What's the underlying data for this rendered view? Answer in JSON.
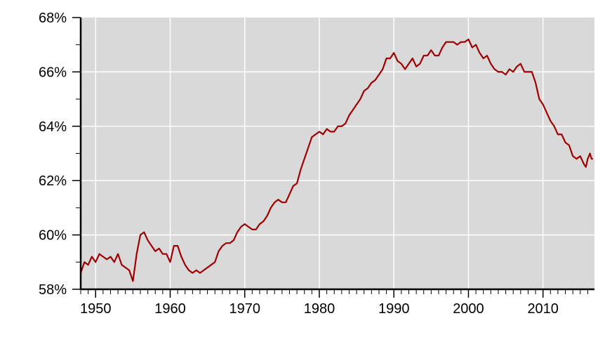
{
  "chart_data": {
    "type": "line",
    "title": "",
    "xlabel": "",
    "ylabel": "",
    "xlim": [
      1948,
      2016.9
    ],
    "ylim": [
      58,
      68
    ],
    "grid": true,
    "background_color": "#d9d9d9",
    "grid_color": "#ffffff",
    "line_color": "#a00000",
    "x_ticks": [
      1950,
      1960,
      1970,
      1980,
      1990,
      2000,
      2010
    ],
    "x_tick_labels": [
      "1950",
      "1960",
      "1970",
      "1980",
      "1990",
      "2000",
      "2010"
    ],
    "y_ticks": [
      58,
      60,
      62,
      64,
      66,
      68
    ],
    "y_tick_labels": [
      "58%",
      "60%",
      "62%",
      "64%",
      "66%",
      "68%"
    ],
    "series": [
      {
        "x": [
          1948,
          1948.5,
          1949,
          1949.5,
          1950,
          1950.5,
          1951,
          1951.5,
          1952,
          1952.5,
          1953,
          1953.5,
          1954,
          1954.5,
          1955,
          1955.5,
          1956,
          1956.5,
          1957,
          1957.5,
          1958,
          1958.5,
          1959,
          1959.5,
          1960,
          1960.5,
          1961,
          1961.5,
          1962,
          1962.5,
          1963,
          1963.5,
          1964,
          1964.5,
          1965,
          1965.5,
          1966,
          1966.5,
          1967,
          1967.5,
          1968,
          1968.5,
          1969,
          1969.5,
          1970,
          1970.5,
          1971,
          1971.5,
          1972,
          1972.5,
          1973,
          1973.5,
          1974,
          1974.5,
          1975,
          1975.5,
          1976,
          1976.5,
          1977,
          1977.5,
          1978,
          1978.5,
          1979,
          1979.5,
          1980,
          1980.5,
          1981,
          1981.5,
          1982,
          1982.5,
          1983,
          1983.5,
          1984,
          1984.5,
          1985,
          1985.5,
          1986,
          1986.5,
          1987,
          1987.5,
          1988,
          1988.5,
          1989,
          1989.5,
          1990,
          1990.5,
          1991,
          1991.5,
          1992,
          1992.5,
          1993,
          1993.5,
          1994,
          1994.5,
          1995,
          1995.5,
          1996,
          1996.5,
          1997,
          1997.5,
          1998,
          1998.5,
          1999,
          1999.5,
          2000,
          2000.5,
          2001,
          2001.5,
          2002,
          2002.5,
          2003,
          2003.5,
          2004,
          2004.5,
          2005,
          2005.5,
          2006,
          2006.5,
          2007,
          2007.5,
          2008,
          2008.5,
          2009,
          2009.5,
          2010,
          2010.5,
          2011,
          2011.5,
          2012,
          2012.5,
          2013,
          2013.5,
          2014,
          2014.5,
          2015,
          2015.5,
          2015.75,
          2016,
          2016.3,
          2016.5,
          2016.7
        ],
        "y": [
          58.6,
          59.0,
          58.9,
          59.2,
          59.0,
          59.3,
          59.2,
          59.1,
          59.2,
          59.0,
          59.3,
          58.9,
          58.8,
          58.7,
          58.3,
          59.3,
          60.0,
          60.1,
          59.8,
          59.6,
          59.4,
          59.5,
          59.3,
          59.3,
          59.0,
          59.6,
          59.6,
          59.2,
          58.9,
          58.7,
          58.6,
          58.7,
          58.6,
          58.7,
          58.8,
          58.9,
          59.0,
          59.4,
          59.6,
          59.7,
          59.7,
          59.8,
          60.1,
          60.3,
          60.4,
          60.3,
          60.2,
          60.2,
          60.4,
          60.5,
          60.7,
          61.0,
          61.2,
          61.3,
          61.2,
          61.2,
          61.5,
          61.8,
          61.9,
          62.4,
          62.8,
          63.2,
          63.6,
          63.7,
          63.8,
          63.7,
          63.9,
          63.8,
          63.8,
          64.0,
          64.0,
          64.1,
          64.4,
          64.6,
          64.8,
          65.0,
          65.3,
          65.4,
          65.6,
          65.7,
          65.9,
          66.1,
          66.5,
          66.5,
          66.7,
          66.4,
          66.3,
          66.1,
          66.3,
          66.5,
          66.2,
          66.3,
          66.6,
          66.6,
          66.8,
          66.6,
          66.6,
          66.9,
          67.1,
          67.1,
          67.1,
          67.0,
          67.1,
          67.1,
          67.2,
          66.9,
          67.0,
          66.7,
          66.5,
          66.6,
          66.3,
          66.1,
          66.0,
          66.0,
          65.9,
          66.1,
          66.0,
          66.2,
          66.3,
          66.0,
          66.0,
          66.0,
          65.6,
          65.0,
          64.8,
          64.5,
          64.2,
          64.0,
          63.7,
          63.7,
          63.4,
          63.3,
          62.9,
          62.8,
          62.9,
          62.6,
          62.5,
          62.8,
          63.0,
          62.8,
          62.8
        ]
      }
    ]
  }
}
